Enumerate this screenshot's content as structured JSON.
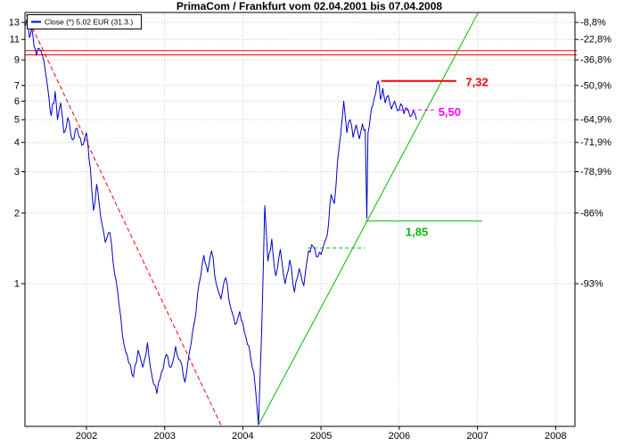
{
  "title": "PrimaCom / Frankfurt vom 02.04.2001 bis 07.04.2008",
  "legend": {
    "label": "Close (*) 5,02 EUR (31.3.)",
    "swatch_color": "#0000c8"
  },
  "colors": {
    "price": "#0000c8",
    "downtrend": "#ff0000",
    "uptrend": "#00bb00",
    "target": "#ff0000",
    "stop": "#ff00ff",
    "support": "#00bb00",
    "grid": "#c8c8c8",
    "border": "#000000",
    "background": "#ffffff"
  },
  "chart_data": {
    "type": "line",
    "title": "PrimaCom / Frankfurt vom 02.04.2001 bis 07.04.2008",
    "x_axis": {
      "years": [
        2002,
        2003,
        2004,
        2005,
        2006,
        2007,
        2008
      ],
      "range": [
        2001.21,
        2008.27
      ]
    },
    "y_axis": {
      "scale": "log",
      "unit": "EUR",
      "ticks": [
        13,
        11,
        9,
        7,
        6,
        5,
        4,
        3,
        2,
        1
      ],
      "range": [
        0.24,
        14.3
      ]
    },
    "right_axis": {
      "labels": [
        {
          "text": "-8,8%",
          "v": 13
        },
        {
          "text": "-22,8%",
          "v": 11
        },
        {
          "text": "-36,8%",
          "v": 9
        },
        {
          "text": "-50,9%",
          "v": 7
        },
        {
          "text": "-64,9%",
          "v": 5
        },
        {
          "text": "-71,9%",
          "v": 4
        },
        {
          "text": "-78,9%",
          "v": 3
        },
        {
          "text": "-86%",
          "v": 2
        },
        {
          "text": "-93%",
          "v": 1
        }
      ]
    },
    "series": {
      "name": "Close",
      "color": "#0000c8",
      "last_close": "5,02 EUR",
      "last_date": "31.3.",
      "points": [
        [
          2001.22,
          12.6
        ],
        [
          2001.25,
          13.0
        ],
        [
          2001.27,
          11.2
        ],
        [
          2001.3,
          12.4
        ],
        [
          2001.33,
          10.3
        ],
        [
          2001.36,
          9.4
        ],
        [
          2001.4,
          10.0
        ],
        [
          2001.44,
          9.3
        ],
        [
          2001.48,
          7.8
        ],
        [
          2001.52,
          6.2
        ],
        [
          2001.55,
          5.2
        ],
        [
          2001.6,
          6.6
        ],
        [
          2001.63,
          5.0
        ],
        [
          2001.67,
          5.9
        ],
        [
          2001.71,
          4.4
        ],
        [
          2001.76,
          5.1
        ],
        [
          2001.82,
          4.1
        ],
        [
          2001.88,
          4.6
        ],
        [
          2001.94,
          3.9
        ],
        [
          2002.0,
          4.4
        ],
        [
          2002.05,
          3.1
        ],
        [
          2002.09,
          2.05
        ],
        [
          2002.13,
          2.65
        ],
        [
          2002.18,
          1.95
        ],
        [
          2002.24,
          1.5
        ],
        [
          2002.3,
          1.65
        ],
        [
          2002.36,
          1.1
        ],
        [
          2002.42,
          0.8
        ],
        [
          2002.48,
          0.55
        ],
        [
          2002.54,
          0.46
        ],
        [
          2002.6,
          0.4
        ],
        [
          2002.66,
          0.52
        ],
        [
          2002.72,
          0.44
        ],
        [
          2002.78,
          0.56
        ],
        [
          2002.84,
          0.4
        ],
        [
          2002.9,
          0.34
        ],
        [
          2002.96,
          0.42
        ],
        [
          2003.02,
          0.5
        ],
        [
          2003.08,
          0.44
        ],
        [
          2003.14,
          0.54
        ],
        [
          2003.2,
          0.47
        ],
        [
          2003.26,
          0.38
        ],
        [
          2003.32,
          0.52
        ],
        [
          2003.38,
          0.68
        ],
        [
          2003.44,
          1.0
        ],
        [
          2003.5,
          1.32
        ],
        [
          2003.55,
          1.12
        ],
        [
          2003.6,
          1.38
        ],
        [
          2003.66,
          1.0
        ],
        [
          2003.72,
          0.86
        ],
        [
          2003.78,
          1.06
        ],
        [
          2003.84,
          0.8
        ],
        [
          2003.9,
          0.67
        ],
        [
          2003.96,
          0.76
        ],
        [
          2004.02,
          0.62
        ],
        [
          2004.08,
          0.54
        ],
        [
          2004.14,
          0.42
        ],
        [
          2004.2,
          0.25
        ],
        [
          2004.24,
          0.62
        ],
        [
          2004.28,
          2.15
        ],
        [
          2004.32,
          1.25
        ],
        [
          2004.37,
          1.55
        ],
        [
          2004.42,
          1.08
        ],
        [
          2004.48,
          1.4
        ],
        [
          2004.54,
          1.0
        ],
        [
          2004.6,
          1.26
        ],
        [
          2004.66,
          0.92
        ],
        [
          2004.72,
          1.16
        ],
        [
          2004.78,
          0.98
        ],
        [
          2004.84,
          1.38
        ],
        [
          2004.9,
          1.44
        ],
        [
          2004.96,
          1.3
        ],
        [
          2005.02,
          1.4
        ],
        [
          2005.08,
          1.62
        ],
        [
          2005.13,
          2.4
        ],
        [
          2005.17,
          2.2
        ],
        [
          2005.21,
          3.3
        ],
        [
          2005.25,
          4.3
        ],
        [
          2005.29,
          6.0
        ],
        [
          2005.33,
          4.4
        ],
        [
          2005.37,
          5.0
        ],
        [
          2005.41,
          4.2
        ],
        [
          2005.45,
          4.75
        ],
        [
          2005.49,
          4.15
        ],
        [
          2005.53,
          4.8
        ],
        [
          2005.565,
          4.55
        ],
        [
          2005.585,
          1.9
        ],
        [
          2005.6,
          4.4
        ],
        [
          2005.63,
          5.1
        ],
        [
          2005.66,
          5.7
        ],
        [
          2005.7,
          6.5
        ],
        [
          2005.73,
          7.32
        ],
        [
          2005.76,
          6.1
        ],
        [
          2005.79,
          6.8
        ],
        [
          2005.82,
          5.9
        ],
        [
          2005.86,
          6.35
        ],
        [
          2005.9,
          5.55
        ],
        [
          2005.94,
          6.0
        ],
        [
          2005.98,
          5.45
        ],
        [
          2006.02,
          5.85
        ],
        [
          2006.06,
          5.3
        ],
        [
          2006.1,
          5.6
        ],
        [
          2006.14,
          5.15
        ],
        [
          2006.18,
          5.45
        ],
        [
          2006.22,
          5.02
        ]
      ]
    },
    "annotations": [
      {
        "name": "resistance-line-upper",
        "kind": "line",
        "x1": 2001.22,
        "v1": 9.85,
        "x2": 2008.27,
        "v2": 9.85,
        "color": "#ff0000",
        "width": 1
      },
      {
        "name": "resistance-line-lower",
        "kind": "line",
        "x1": 2001.22,
        "v1": 9.45,
        "x2": 2008.27,
        "v2": 9.45,
        "color": "#ff0000",
        "width": 1
      },
      {
        "name": "downtrend-line",
        "kind": "line",
        "x1": 2001.23,
        "v1": 14.0,
        "x2": 2003.73,
        "v2": 0.246,
        "color": "#ff0000",
        "width": 1,
        "dash": "5,3"
      },
      {
        "name": "uptrend-line",
        "kind": "line",
        "x1": 2004.2,
        "v1": 0.25,
        "x2": 2007.01,
        "v2": 14.3,
        "color": "#00bb00",
        "width": 1
      },
      {
        "name": "target-level-732",
        "kind": "line",
        "x1": 2005.77,
        "v1": 7.32,
        "x2": 2006.73,
        "v2": 7.32,
        "color": "#ff0000",
        "width": 2,
        "label": {
          "text": "7,32",
          "x": 2006.85,
          "v": 6.95,
          "color": "#ff0000"
        }
      },
      {
        "name": "level-550",
        "kind": "line",
        "x1": 2006.0,
        "v1": 5.5,
        "x2": 2006.45,
        "v2": 5.5,
        "color": "#ff00ff",
        "width": 1,
        "dash": "4,3",
        "label": {
          "text": "5,50",
          "x": 2006.5,
          "v": 5.18,
          "color": "#ff00ff"
        }
      },
      {
        "name": "support-level-185",
        "kind": "line",
        "x1": 2005.57,
        "v1": 1.85,
        "x2": 2007.06,
        "v2": 1.85,
        "color": "#00bb00",
        "width": 1,
        "label": {
          "text": "1,85",
          "x": 2006.08,
          "v": 1.6,
          "color": "#00bb00"
        }
      },
      {
        "name": "support-level-142",
        "kind": "line",
        "x1": 2004.83,
        "v1": 1.42,
        "x2": 2005.56,
        "v2": 1.42,
        "color": "#00bb00",
        "width": 1,
        "dash": "4,3"
      }
    ]
  }
}
